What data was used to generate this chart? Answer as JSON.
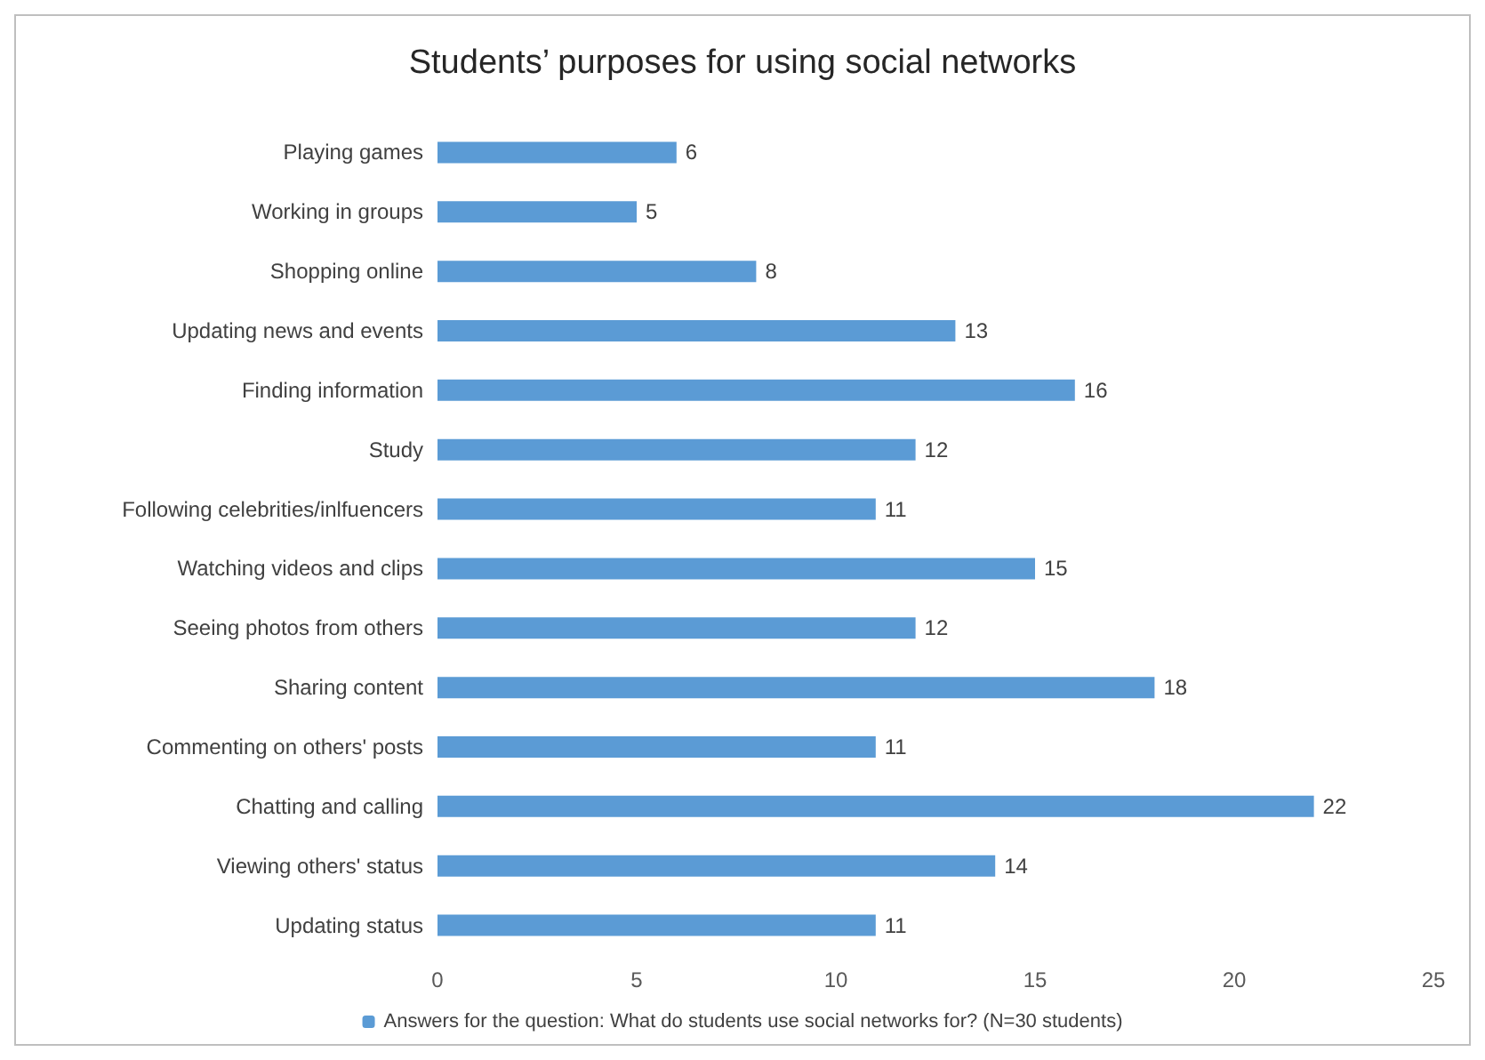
{
  "chart_data": {
    "type": "bar",
    "orientation": "horizontal",
    "title": "Students’ purposes for using social networks",
    "categories": [
      "Playing games",
      "Working in groups",
      "Shopping online",
      "Updating news and events",
      "Finding information",
      "Study",
      "Following celebrities/inlfuencers",
      "Watching videos and clips",
      "Seeing photos from others",
      "Sharing content",
      "Commenting on others' posts",
      "Chatting and calling",
      "Viewing others' status",
      "Updating status"
    ],
    "series": [
      {
        "name": "Answers for the question: What do students use social networks for? (N=30 students)",
        "color": "#5b9bd5",
        "values": [
          6,
          5,
          8,
          13,
          16,
          12,
          11,
          15,
          12,
          18,
          11,
          22,
          14,
          11
        ]
      }
    ],
    "xlim": [
      0,
      25
    ],
    "xticks": [
      0,
      5,
      10,
      15,
      20,
      25
    ],
    "data_labels": true,
    "legend": "bottom",
    "grid": false
  }
}
